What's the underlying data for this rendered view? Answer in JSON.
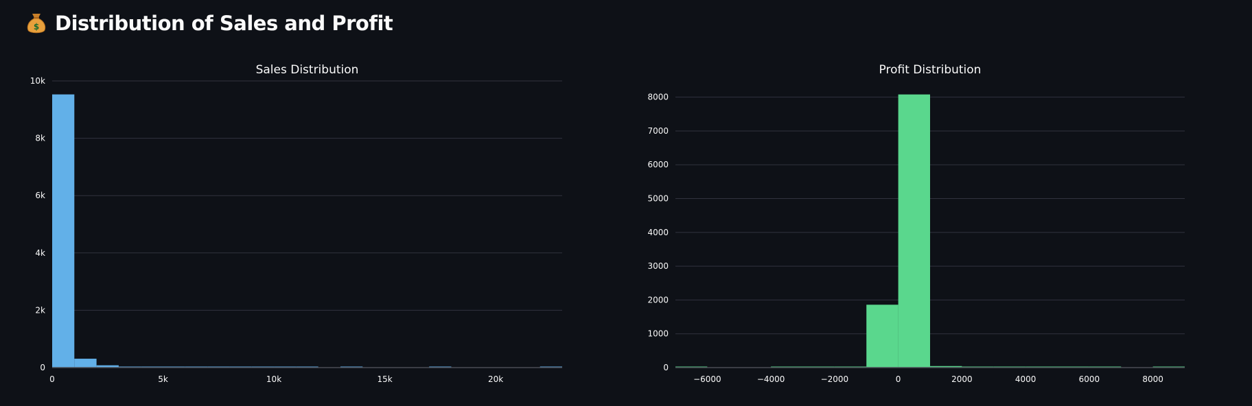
{
  "header": {
    "icon": "money-bag-icon",
    "title": "Distribution of Sales and Profit"
  },
  "colors": {
    "background": "#0e1117",
    "sales_bar": "#62b0e8",
    "profit_bar": "#5ad78d",
    "grid": "#31333f",
    "text": "#fafafa"
  },
  "chart_data": [
    {
      "type": "bar",
      "title": "Sales Distribution",
      "xlabel": "",
      "ylabel": "",
      "xlim": [
        0,
        23000
      ],
      "ylim": [
        0,
        10000
      ],
      "grid": true,
      "x_ticks": [
        0,
        5000,
        10000,
        15000,
        20000
      ],
      "x_tick_labels": [
        "0",
        "5k",
        "10k",
        "15k",
        "20k"
      ],
      "y_ticks": [
        0,
        2000,
        4000,
        6000,
        8000,
        10000
      ],
      "y_tick_labels": [
        "0",
        "2k",
        "4k",
        "6k",
        "8k",
        "10k"
      ],
      "bins": [
        {
          "x0": 0,
          "x1": 1000,
          "count": 9530
        },
        {
          "x0": 1000,
          "x1": 2000,
          "count": 310
        },
        {
          "x0": 2000,
          "x1": 3000,
          "count": 80
        },
        {
          "x0": 3000,
          "x1": 4000,
          "count": 30
        },
        {
          "x0": 4000,
          "x1": 5000,
          "count": 20
        },
        {
          "x0": 5000,
          "x1": 6000,
          "count": 15
        },
        {
          "x0": 6000,
          "x1": 7000,
          "count": 10
        },
        {
          "x0": 7000,
          "x1": 8000,
          "count": 8
        },
        {
          "x0": 8000,
          "x1": 9000,
          "count": 6
        },
        {
          "x0": 9000,
          "x1": 10000,
          "count": 5
        },
        {
          "x0": 10000,
          "x1": 11000,
          "count": 4
        },
        {
          "x0": 11000,
          "x1": 12000,
          "count": 3
        },
        {
          "x0": 12000,
          "x1": 13000,
          "count": 0
        },
        {
          "x0": 13000,
          "x1": 14000,
          "count": 2
        },
        {
          "x0": 14000,
          "x1": 15000,
          "count": 0
        },
        {
          "x0": 15000,
          "x1": 16000,
          "count": 0
        },
        {
          "x0": 16000,
          "x1": 17000,
          "count": 0
        },
        {
          "x0": 17000,
          "x1": 18000,
          "count": 1
        },
        {
          "x0": 18000,
          "x1": 19000,
          "count": 0
        },
        {
          "x0": 19000,
          "x1": 20000,
          "count": 0
        },
        {
          "x0": 20000,
          "x1": 21000,
          "count": 0
        },
        {
          "x0": 21000,
          "x1": 22000,
          "count": 0
        },
        {
          "x0": 22000,
          "x1": 23000,
          "count": 1
        }
      ]
    },
    {
      "type": "bar",
      "title": "Profit Distribution",
      "xlabel": "",
      "ylabel": "",
      "xlim": [
        -7000,
        9000
      ],
      "ylim": [
        0,
        8500
      ],
      "grid": true,
      "x_ticks": [
        -6000,
        -4000,
        -2000,
        0,
        2000,
        4000,
        6000,
        8000
      ],
      "x_tick_labels": [
        "−6000",
        "−4000",
        "−2000",
        "0",
        "2000",
        "4000",
        "6000",
        "8000"
      ],
      "y_ticks": [
        0,
        1000,
        2000,
        3000,
        4000,
        5000,
        6000,
        7000,
        8000
      ],
      "y_tick_labels": [
        "0",
        "1000",
        "2000",
        "3000",
        "4000",
        "5000",
        "6000",
        "7000",
        "8000"
      ],
      "bins": [
        {
          "x0": -7000,
          "x1": -6000,
          "count": 1
        },
        {
          "x0": -6000,
          "x1": -5000,
          "count": 0
        },
        {
          "x0": -5000,
          "x1": -4000,
          "count": 0
        },
        {
          "x0": -4000,
          "x1": -3000,
          "count": 2
        },
        {
          "x0": -3000,
          "x1": -2000,
          "count": 4
        },
        {
          "x0": -2000,
          "x1": -1000,
          "count": 12
        },
        {
          "x0": -1000,
          "x1": 0,
          "count": 1860
        },
        {
          "x0": 0,
          "x1": 1000,
          "count": 8080
        },
        {
          "x0": 1000,
          "x1": 2000,
          "count": 45
        },
        {
          "x0": 2000,
          "x1": 3000,
          "count": 12
        },
        {
          "x0": 3000,
          "x1": 4000,
          "count": 5
        },
        {
          "x0": 4000,
          "x1": 5000,
          "count": 3
        },
        {
          "x0": 5000,
          "x1": 6000,
          "count": 2
        },
        {
          "x0": 6000,
          "x1": 7000,
          "count": 1
        },
        {
          "x0": 7000,
          "x1": 8000,
          "count": 0
        },
        {
          "x0": 8000,
          "x1": 9000,
          "count": 1
        }
      ]
    }
  ]
}
